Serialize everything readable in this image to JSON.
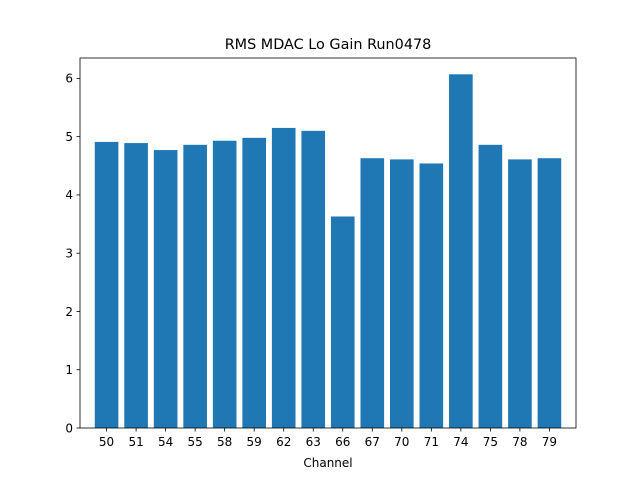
{
  "chart_data": {
    "type": "bar",
    "title": "RMS MDAC Lo Gain Run0478",
    "xlabel": "Channel",
    "ylabel": "",
    "categories": [
      "50",
      "51",
      "54",
      "55",
      "58",
      "59",
      "62",
      "63",
      "66",
      "67",
      "70",
      "71",
      "74",
      "75",
      "78",
      "79"
    ],
    "values": [
      4.91,
      4.89,
      4.77,
      4.86,
      4.93,
      4.98,
      5.15,
      5.1,
      3.63,
      4.63,
      4.61,
      4.54,
      6.07,
      4.86,
      4.61,
      4.63
    ],
    "ylim": [
      0,
      6.35
    ],
    "yticks": [
      0,
      1,
      2,
      3,
      4,
      5,
      6
    ],
    "bar_color": "#1f77b4",
    "grid": false,
    "legend": "none"
  }
}
